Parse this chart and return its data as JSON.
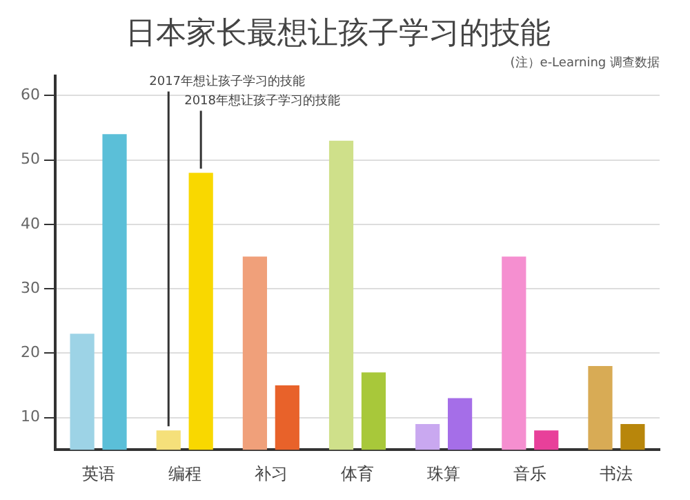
{
  "chart_data": {
    "type": "bar",
    "title": "日本家长最想让孩子学习的技能",
    "annotations": [
      "(注）e-Learning 调查数据"
    ],
    "categories": [
      "英语",
      "编程",
      "补习",
      "体育",
      "珠算",
      "音乐",
      "书法"
    ],
    "series": [
      {
        "name": "2017年想让孩子学习的技能",
        "colors": [
          "#9dd3e6",
          "#f5e07a",
          "#f0a07a",
          "#cfe08a",
          "#c9a8f0",
          "#f58fd0",
          "#d8ab55"
        ],
        "values": [
          23,
          8,
          35,
          53,
          9,
          35,
          18
        ]
      },
      {
        "name": "2018年想让孩子学习的技能",
        "colors": [
          "#5bbfd8",
          "#f9d800",
          "#e8622a",
          "#a8c83a",
          "#a56ee8",
          "#e8409a",
          "#b8860b"
        ],
        "values": [
          54,
          48,
          15,
          17,
          13,
          8,
          9
        ]
      }
    ],
    "ylim": [
      5,
      63
    ],
    "yticks": [
      10,
      20,
      30,
      40,
      50,
      60
    ],
    "grid": "y",
    "legend": false
  }
}
